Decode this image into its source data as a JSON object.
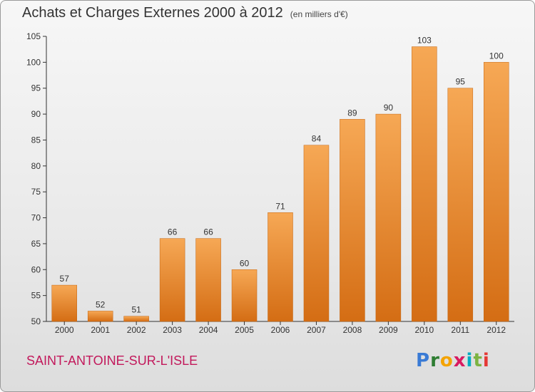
{
  "header": {
    "title": "Achats et Charges Externes 2000 à 2012",
    "unit": "(en milliers d'€)"
  },
  "footer": {
    "city": "SAINT-ANTOINE-SUR-L'ISLE",
    "brand": {
      "letters": [
        "P",
        "r",
        "o",
        "x",
        "i",
        "t",
        "i"
      ],
      "colors": [
        "#3a7bd5",
        "#2e7d32",
        "#f4a300",
        "#d81b60",
        "#00acc1",
        "#7cb342",
        "#e53935"
      ]
    }
  },
  "chart_data": {
    "type": "bar",
    "categories": [
      "2000",
      "2001",
      "2002",
      "2003",
      "2004",
      "2005",
      "2006",
      "2007",
      "2008",
      "2009",
      "2010",
      "2011",
      "2012"
    ],
    "values": [
      57,
      52,
      51,
      66,
      66,
      60,
      71,
      84,
      89,
      90,
      103,
      95,
      100
    ],
    "title": "Achats et Charges Externes 2000 à 2012",
    "ylim": [
      50,
      105
    ],
    "yticks": [
      50,
      55,
      60,
      65,
      70,
      75,
      80,
      85,
      90,
      95,
      100,
      105
    ],
    "grid": false,
    "bar_color": "#f08a28"
  }
}
